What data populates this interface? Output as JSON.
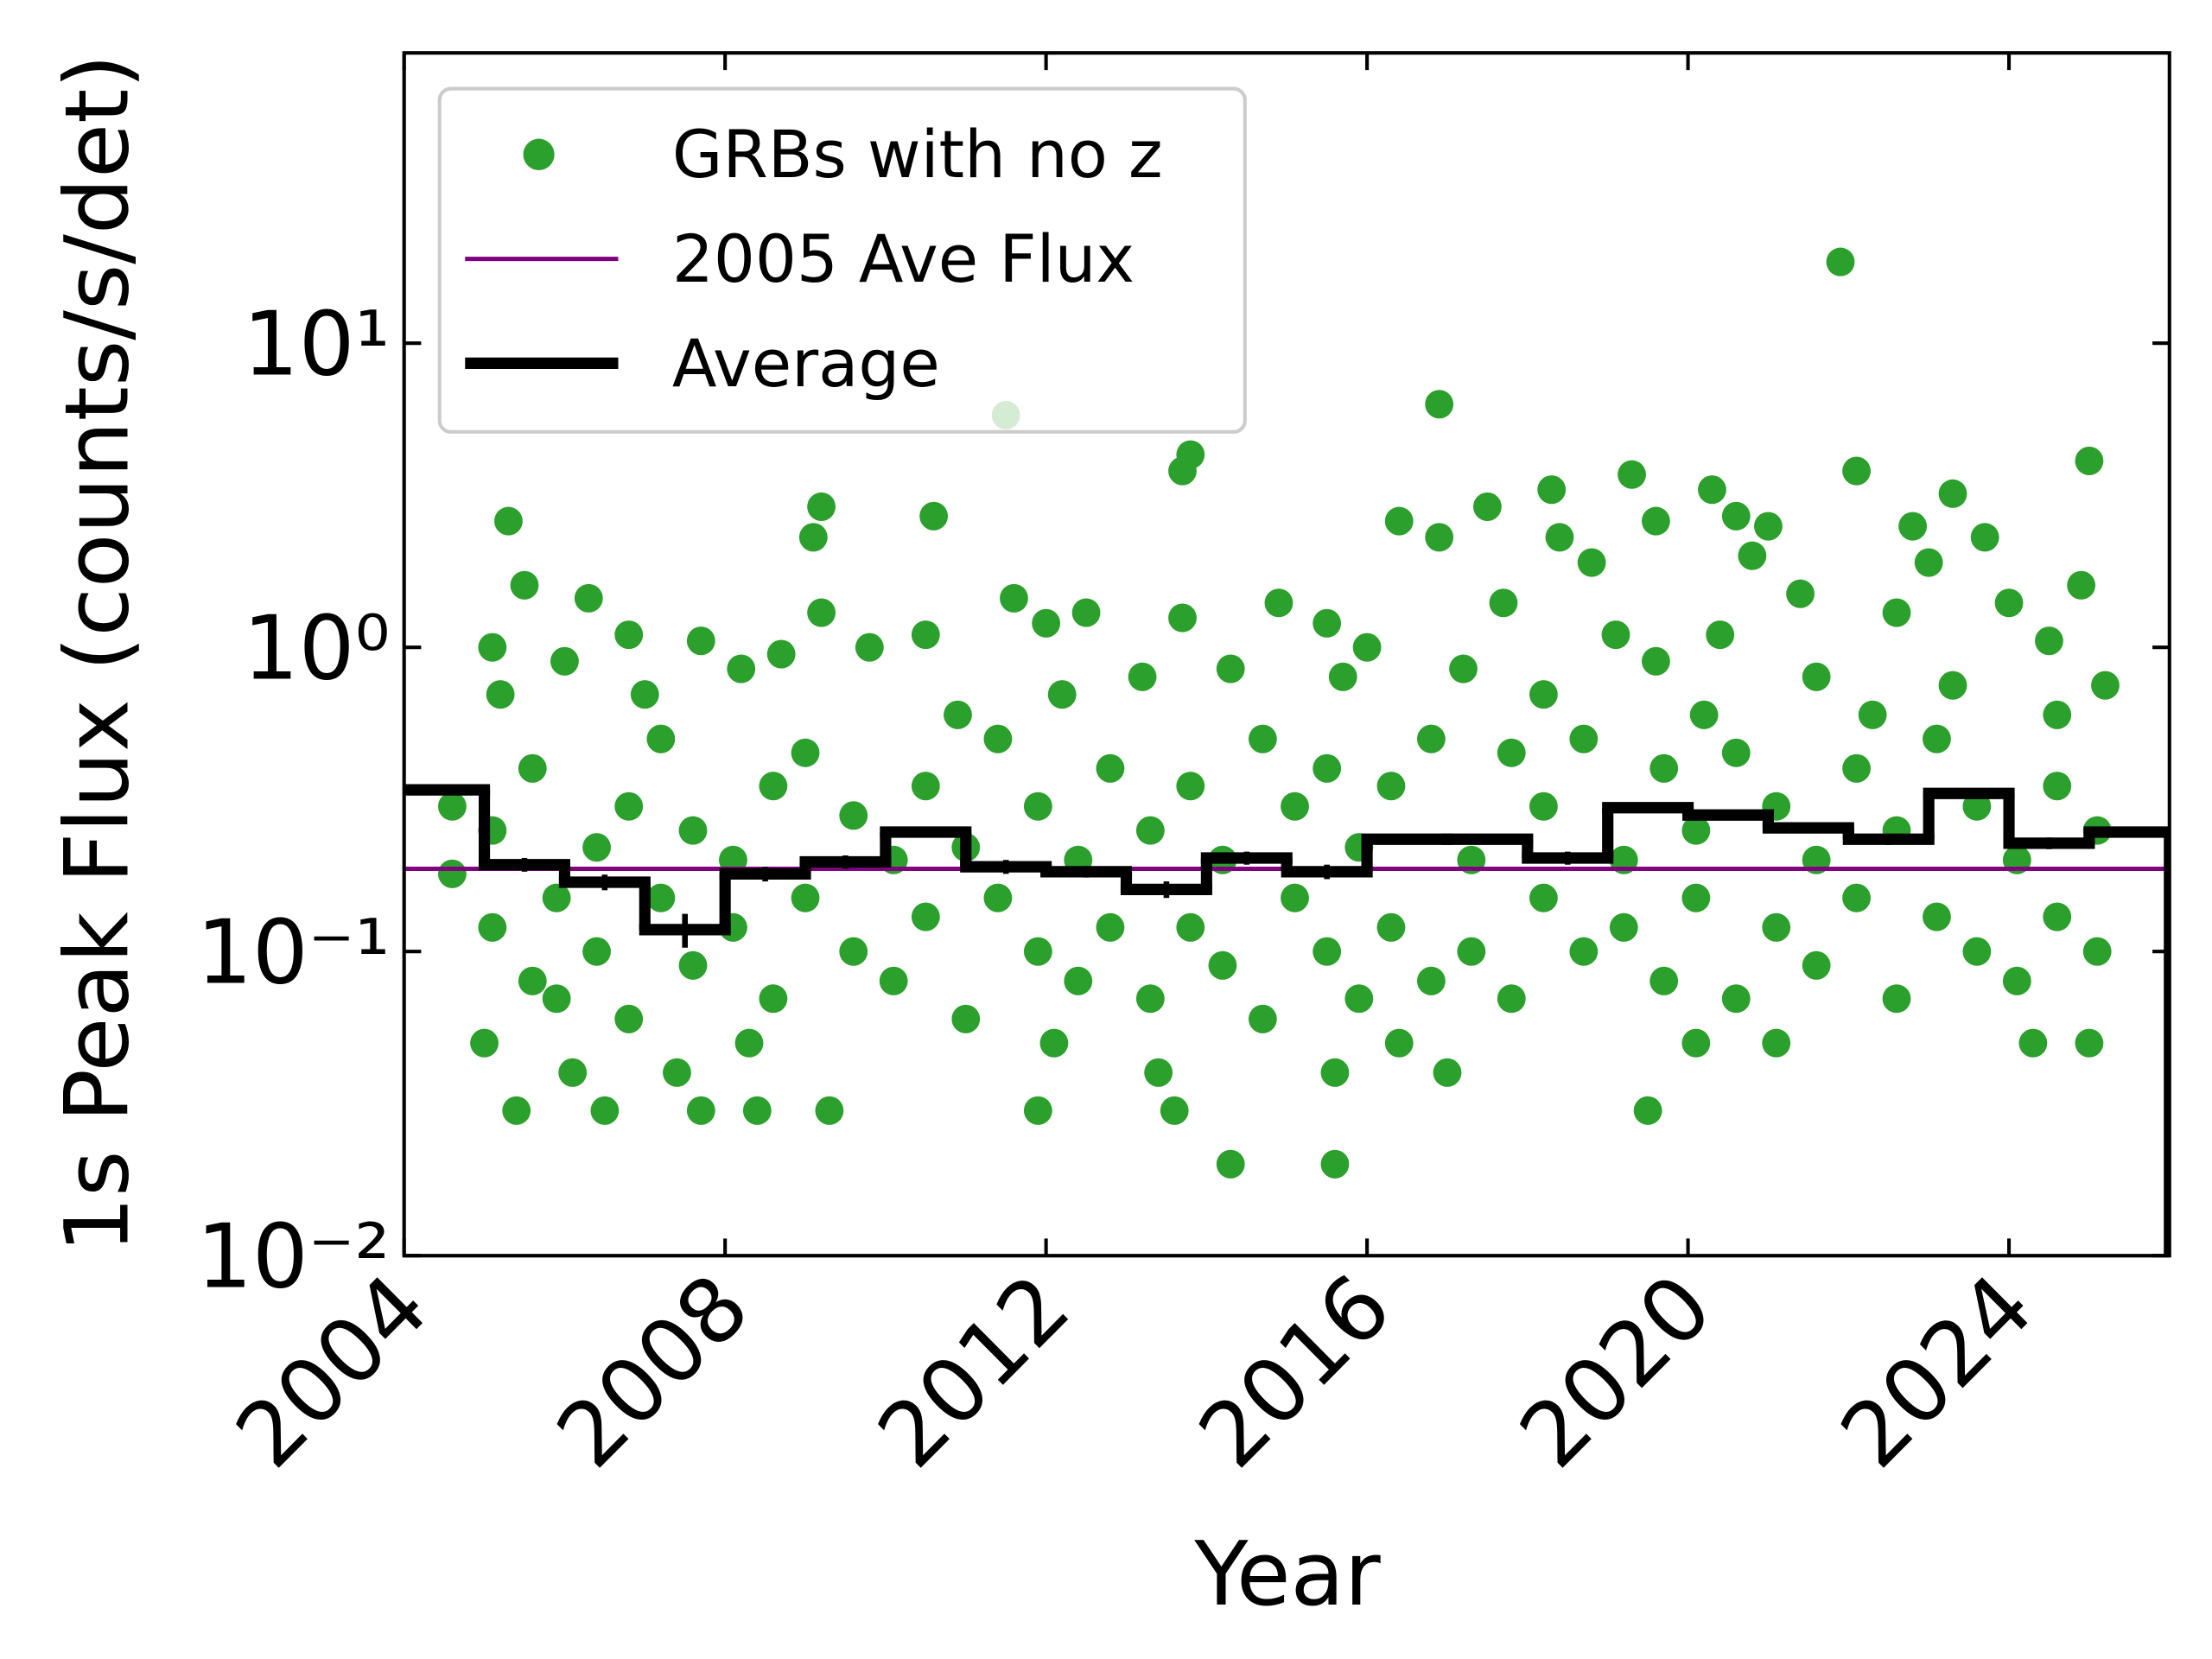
{
  "chart_data": {
    "type": "scatter",
    "xlabel": "Year",
    "ylabel": "1s Peak Flux (counts/s/det)",
    "xlim": [
      2004,
      2026
    ],
    "ylim": [
      0.01,
      90
    ],
    "log_y": true,
    "xticks": [
      2004,
      2008,
      2012,
      2016,
      2020,
      2024
    ],
    "yticks": [
      {
        "value": 0.01,
        "label": "10⁻²"
      },
      {
        "value": 0.1,
        "label": "10⁻¹"
      },
      {
        "value": 1,
        "label": "10⁰"
      },
      {
        "value": 10,
        "label": "10¹"
      }
    ],
    "legend": "upper left",
    "series": [
      {
        "name": "GRBs with no z",
        "type": "scatter",
        "color": "#2ca02c",
        "x": [
          2021.9,
          2016.9,
          2011.5,
          2013.8,
          2013.7,
          2025.0,
          2022.1,
          2019.3,
          2020.3,
          2023.3,
          2018.3,
          2017.5,
          2009.2,
          2010.6,
          2016.4,
          2005.3,
          2009.1,
          2016.9,
          2019.6,
          2020.6,
          2021.0,
          2022.8,
          2023.7,
          2018.4,
          2020.8,
          2023.0,
          2018.8,
          2005.5,
          2006.3,
          2011.6,
          2014.9,
          2017.7,
          2021.4,
          2024.0,
          2024.9,
          2012.5,
          2009.2,
          2013.7,
          2015.5,
          2019.1,
          2020.4,
          2006.8,
          2007.7,
          2012.0,
          2010.5,
          2022.6,
          2024.5,
          2005.1,
          2009.8,
          2016.0,
          2006.0,
          2008.2,
          2008.7,
          2014.3,
          2017.2,
          2019.6,
          2021.6,
          2023.3,
          2025.2,
          2005.2,
          2007.0,
          2010.9,
          2012.2,
          2013.2,
          2015.7,
          2018.2,
          2020.2,
          2022.3,
          2024.6,
          2014.3,
          2015.6,
          2005.4,
          2006.5,
          2007.7,
          2008.4,
          2009.3,
          2011.9,
          2013.6,
          2019.5,
          2006.1,
          2007.4,
          2013.4,
          2015.6,
          2017.0,
          2021.1,
          2024.3,
          2025.0,
          2020.1,
          2005.0,
          2008.3,
          2012.1,
          2016.4,
          2004.6,
          2004.6,
          2005.1,
          2005.1,
          2005.6,
          2005.6,
          2005.9,
          2005.9,
          2006.4,
          2006.4,
          2006.8,
          2006.8,
          2007.2,
          2007.2,
          2007.6,
          2007.6,
          2008.1,
          2008.1,
          2008.6,
          2008.6,
          2009.0,
          2009.0,
          2009.6,
          2009.6,
          2010.1,
          2010.1,
          2010.5,
          2010.5,
          2011.0,
          2011.0,
          2011.4,
          2011.4,
          2011.9,
          2011.9,
          2012.4,
          2012.4,
          2012.8,
          2012.8,
          2013.3,
          2013.3,
          2013.8,
          2013.8,
          2014.2,
          2014.2,
          2014.7,
          2014.7,
          2015.1,
          2015.1,
          2015.5,
          2015.5,
          2015.9,
          2015.9,
          2016.3,
          2016.3,
          2016.8,
          2016.8,
          2017.3,
          2017.3,
          2017.8,
          2017.8,
          2018.2,
          2018.2,
          2018.7,
          2018.7,
          2019.2,
          2019.2,
          2019.7,
          2019.7,
          2020.1,
          2020.1,
          2020.6,
          2020.6,
          2021.1,
          2021.1,
          2021.6,
          2021.6,
          2022.1,
          2022.1,
          2022.6,
          2022.6,
          2023.1,
          2023.1,
          2023.6,
          2023.6,
          2024.1,
          2024.1,
          2024.6,
          2024.6,
          2025.1,
          2025.1
        ],
        "values": [
          18.5,
          6.3,
          5.8,
          4.3,
          3.8,
          4.1,
          3.8,
          3.7,
          3.3,
          3.2,
          3.3,
          2.9,
          2.9,
          2.7,
          2.6,
          2.6,
          2.3,
          2.3,
          2.6,
          2.7,
          2.5,
          2.5,
          2.3,
          2.3,
          2.0,
          1.9,
          1.9,
          1.6,
          1.45,
          1.45,
          1.4,
          1.4,
          1.5,
          1.4,
          1.6,
          1.3,
          1.3,
          1.25,
          1.2,
          1.1,
          1.1,
          1.1,
          1.05,
          1.2,
          1.1,
          1.3,
          1.05,
          1.0,
          1.0,
          1.0,
          0.9,
          0.85,
          0.95,
          0.85,
          0.85,
          0.9,
          0.8,
          0.75,
          0.75,
          0.7,
          0.7,
          0.6,
          0.7,
          0.8,
          0.8,
          0.7,
          0.6,
          0.6,
          0.6,
          0.02,
          0.02,
          0.03,
          0.03,
          0.03,
          0.03,
          0.03,
          0.03,
          0.03,
          0.03,
          0.04,
          0.04,
          0.04,
          0.04,
          0.04,
          0.05,
          0.05,
          0.05,
          0.05,
          0.05,
          0.05,
          0.05,
          0.05,
          0.3,
          0.18,
          0.12,
          0.25,
          0.08,
          0.4,
          0.15,
          0.07,
          0.22,
          0.1,
          0.06,
          0.3,
          0.15,
          0.5,
          0.09,
          0.25,
          0.2,
          0.12,
          0.07,
          0.35,
          0.15,
          0.45,
          0.1,
          0.28,
          0.2,
          0.08,
          0.35,
          0.13,
          0.06,
          0.22,
          0.15,
          0.5,
          0.1,
          0.3,
          0.08,
          0.2,
          0.4,
          0.12,
          0.07,
          0.25,
          0.12,
          0.35,
          0.09,
          0.2,
          0.06,
          0.5,
          0.15,
          0.3,
          0.1,
          0.4,
          0.07,
          0.22,
          0.12,
          0.35,
          0.08,
          0.5,
          0.2,
          0.1,
          0.45,
          0.07,
          0.15,
          0.3,
          0.1,
          0.5,
          0.2,
          0.12,
          0.4,
          0.08,
          0.25,
          0.15,
          0.07,
          0.45,
          0.12,
          0.3,
          0.09,
          0.2,
          0.15,
          0.4,
          0.07,
          0.25,
          0.13,
          0.5,
          0.1,
          0.3,
          0.2,
          0.08,
          0.13,
          0.35,
          0.1,
          0.25
        ]
      },
      {
        "name": "2005 Ave Flux",
        "type": "hline",
        "color": "#800080",
        "value": 0.187
      },
      {
        "name": "Average",
        "type": "step",
        "color": "#000000",
        "bins": [
          2004,
          2005,
          2006,
          2007,
          2008,
          2009,
          2010,
          2011,
          2012,
          2013,
          2014,
          2015,
          2016,
          2017,
          2018,
          2019,
          2020,
          2021,
          2022,
          2023,
          2024,
          2025,
          2026
        ],
        "values": [
          0.34,
          0.193,
          0.169,
          0.118,
          0.18,
          0.197,
          0.247,
          0.19,
          0.183,
          0.16,
          0.203,
          0.183,
          0.234,
          0.234,
          0.203,
          0.297,
          0.281,
          0.255,
          0.234,
          0.331,
          0.227,
          0.247
        ],
        "errors": [
          0.01,
          0.01,
          0.01,
          0.015,
          0.01,
          0.01,
          0.01,
          0.01,
          0.008,
          0.01,
          0.01,
          0.01,
          0.008,
          0.008,
          0.01,
          0.01,
          0.01,
          0.01,
          0.01,
          0.01,
          0.01,
          0.01
        ]
      }
    ]
  }
}
